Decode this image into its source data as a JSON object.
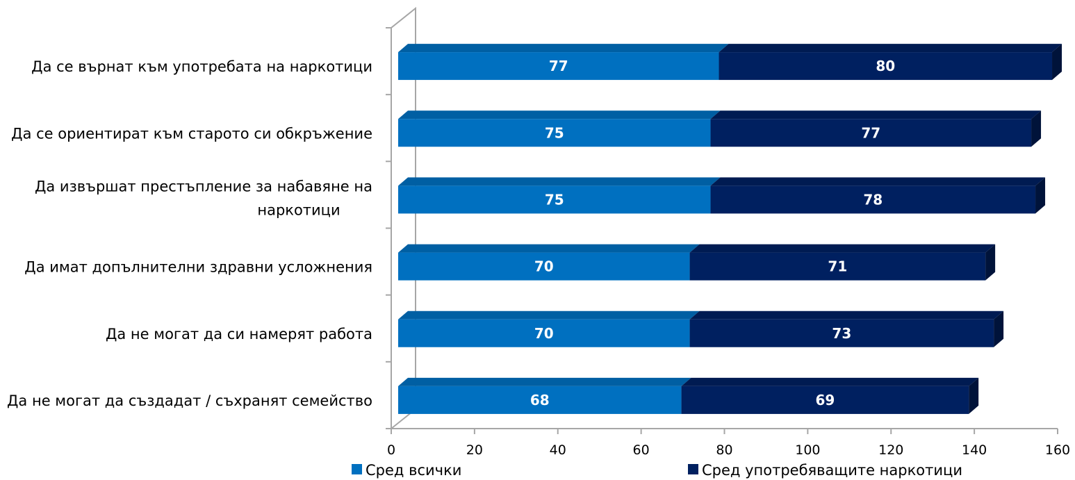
{
  "chart_data": {
    "type": "bar",
    "orientation": "horizontal",
    "stacked": true,
    "style_3d": true,
    "categories": [
      [
        "Да се върнат към употребата на наркотици"
      ],
      [
        "Да се ориентират към старото си обкръжение"
      ],
      [
        "Да извършат престъпление за набавяне на",
        "наркотици"
      ],
      [
        "Да имат допълнителни здравни усложнения"
      ],
      [
        "Да не могат да си намерят работа"
      ],
      [
        "Да не могат да създадат / съхранят семейство"
      ]
    ],
    "series": [
      {
        "name": "Сред всички",
        "values": [
          77,
          75,
          75,
          70,
          70,
          68
        ],
        "color": "#0070C0"
      },
      {
        "name": "Сред употребяващите наркотици",
        "values": [
          80,
          77,
          78,
          71,
          73,
          69
        ],
        "color": "#002060"
      }
    ],
    "xlim": [
      0,
      160
    ],
    "xticks": [
      0,
      20,
      40,
      60,
      80,
      100,
      120,
      140,
      160
    ],
    "grid": false,
    "legend_position": "bottom"
  }
}
